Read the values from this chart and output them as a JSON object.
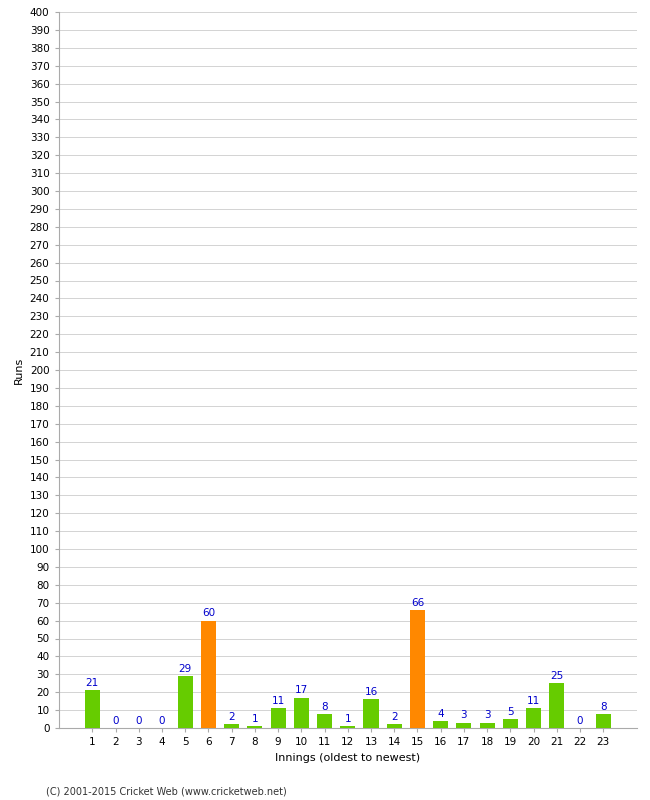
{
  "xlabel": "Innings (oldest to newest)",
  "ylabel": "Runs",
  "categories": [
    1,
    2,
    3,
    4,
    5,
    6,
    7,
    8,
    9,
    10,
    11,
    12,
    13,
    14,
    15,
    16,
    17,
    18,
    19,
    20,
    21,
    22,
    23
  ],
  "values": [
    21,
    0,
    0,
    0,
    29,
    60,
    2,
    1,
    11,
    17,
    8,
    1,
    16,
    2,
    66,
    4,
    3,
    3,
    5,
    11,
    25,
    0,
    8
  ],
  "colors": [
    "#66cc00",
    "#66cc00",
    "#66cc00",
    "#66cc00",
    "#66cc00",
    "#ff8800",
    "#66cc00",
    "#66cc00",
    "#66cc00",
    "#66cc00",
    "#66cc00",
    "#66cc00",
    "#66cc00",
    "#66cc00",
    "#ff8800",
    "#66cc00",
    "#66cc00",
    "#66cc00",
    "#66cc00",
    "#66cc00",
    "#66cc00",
    "#66cc00",
    "#66cc00"
  ],
  "label_color": "#0000cc",
  "bg_color": "#ffffff",
  "grid_color": "#cccccc",
  "ylim": [
    0,
    400
  ],
  "ytick_step": 10,
  "footer": "(C) 2001-2015 Cricket Web (www.cricketweb.net)",
  "footer_color": "#333333",
  "axis_color": "#aaaaaa",
  "tick_label_fontsize": 7.5,
  "bar_label_fontsize": 7.5,
  "xlabel_fontsize": 8,
  "ylabel_fontsize": 8
}
